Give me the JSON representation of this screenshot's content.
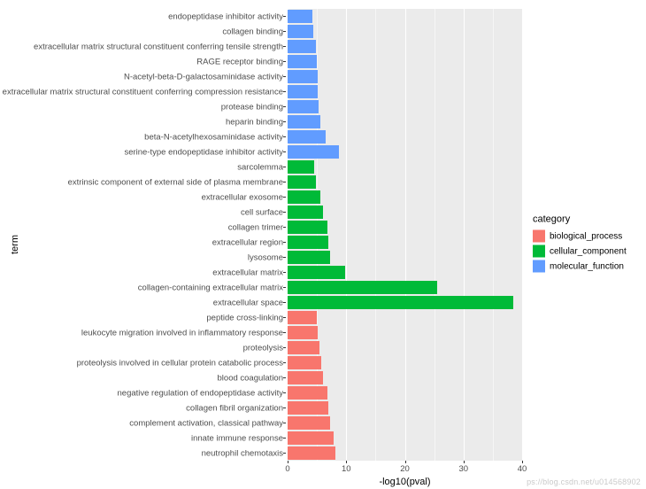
{
  "chart": {
    "type": "bar_horizontal",
    "panel_bg": "#ebebeb",
    "grid_color": "#ffffff",
    "tick_color": "#333333",
    "bar_rel_height": 0.9,
    "y_title": "term",
    "x_title": "-log10(pval)",
    "xlim": [
      0,
      40
    ],
    "x_ticks": [
      0,
      10,
      20,
      30,
      40
    ],
    "x_minor": [
      5,
      15,
      25,
      35
    ],
    "label_fontsize": 9.5,
    "axis_title_fontsize": 11,
    "categories": {
      "biological_process": "#f8766d",
      "cellular_component": "#00ba38",
      "molecular_function": "#619cff"
    },
    "legend": {
      "title": "category",
      "items": [
        {
          "key": "biological_process",
          "label": "biological_process"
        },
        {
          "key": "cellular_component",
          "label": "cellular_component"
        },
        {
          "key": "molecular_function",
          "label": "molecular_function"
        }
      ]
    },
    "bars": [
      {
        "term": "endopeptidase inhibitor activity",
        "value": 4.3,
        "cat": "molecular_function"
      },
      {
        "term": "collagen binding",
        "value": 4.4,
        "cat": "molecular_function"
      },
      {
        "term": "extracellular matrix structural constituent conferring tensile strength",
        "value": 4.8,
        "cat": "molecular_function"
      },
      {
        "term": "RAGE receptor binding",
        "value": 5.0,
        "cat": "molecular_function"
      },
      {
        "term": "N-acetyl-beta-D-galactosaminidase activity",
        "value": 5.1,
        "cat": "molecular_function"
      },
      {
        "term": "extracellular matrix structural constituent conferring compression resistance",
        "value": 5.2,
        "cat": "molecular_function"
      },
      {
        "term": "protease binding",
        "value": 5.3,
        "cat": "molecular_function"
      },
      {
        "term": "heparin binding",
        "value": 5.6,
        "cat": "molecular_function"
      },
      {
        "term": "beta-N-acetylhexosaminidase activity",
        "value": 6.5,
        "cat": "molecular_function"
      },
      {
        "term": "serine-type endopeptidase inhibitor activity",
        "value": 8.8,
        "cat": "molecular_function"
      },
      {
        "term": "sarcolemma",
        "value": 4.6,
        "cat": "cellular_component"
      },
      {
        "term": "extrinsic component of external side of plasma membrane",
        "value": 4.8,
        "cat": "cellular_component"
      },
      {
        "term": "extracellular exosome",
        "value": 5.6,
        "cat": "cellular_component"
      },
      {
        "term": "cell surface",
        "value": 6.0,
        "cat": "cellular_component"
      },
      {
        "term": "collagen trimer",
        "value": 6.8,
        "cat": "cellular_component"
      },
      {
        "term": "extracellular region",
        "value": 7.0,
        "cat": "cellular_component"
      },
      {
        "term": "lysosome",
        "value": 7.2,
        "cat": "cellular_component"
      },
      {
        "term": "extracellular matrix",
        "value": 9.8,
        "cat": "cellular_component"
      },
      {
        "term": "collagen-containing extracellular matrix",
        "value": 25.5,
        "cat": "cellular_component"
      },
      {
        "term": "extracellular space",
        "value": 38.5,
        "cat": "cellular_component"
      },
      {
        "term": "peptide cross-linking",
        "value": 5.0,
        "cat": "biological_process"
      },
      {
        "term": "leukocyte migration involved in inflammatory response",
        "value": 5.2,
        "cat": "biological_process"
      },
      {
        "term": "proteolysis",
        "value": 5.4,
        "cat": "biological_process"
      },
      {
        "term": "proteolysis involved in cellular protein catabolic process",
        "value": 5.8,
        "cat": "biological_process"
      },
      {
        "term": "blood coagulation",
        "value": 6.0,
        "cat": "biological_process"
      },
      {
        "term": "negative regulation of endopeptidase activity",
        "value": 6.8,
        "cat": "biological_process"
      },
      {
        "term": "collagen fibril organization",
        "value": 7.0,
        "cat": "biological_process"
      },
      {
        "term": "complement activation, classical pathway",
        "value": 7.2,
        "cat": "biological_process"
      },
      {
        "term": "innate immune response",
        "value": 7.8,
        "cat": "biological_process"
      },
      {
        "term": "neutrophil chemotaxis",
        "value": 8.2,
        "cat": "biological_process"
      }
    ]
  },
  "watermark": "ps://blog.csdn.net/u014568902"
}
